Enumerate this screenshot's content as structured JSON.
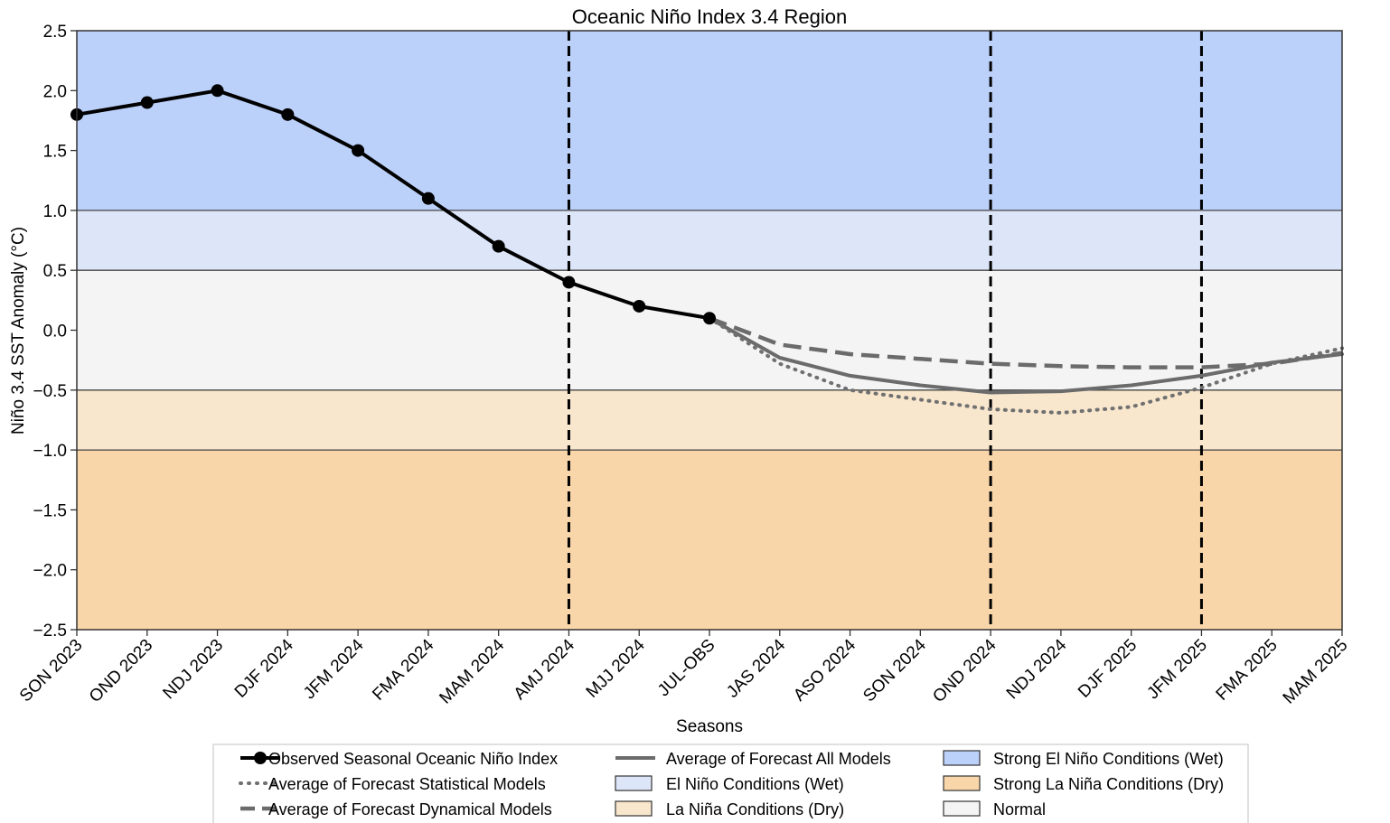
{
  "chart_data": {
    "type": "line",
    "title": "Oceanic Niño Index 3.4 Region",
    "xlabel": "Seasons",
    "ylabel": "Niño 3.4 SST Anomaly (°C)",
    "ylim": [
      -2.5,
      2.5
    ],
    "yticks": [
      "2.5",
      "2.0",
      "1.5",
      "1.0",
      "0.5",
      "0.0",
      "−0.5",
      "−1.0",
      "−1.5",
      "−2.0",
      "−2.5"
    ],
    "ytick_values": [
      2.5,
      2.0,
      1.5,
      1.0,
      0.5,
      0.0,
      -0.5,
      -1.0,
      -1.5,
      -2.0,
      -2.5
    ],
    "categories": [
      "SON 2023",
      "OND 2023",
      "NDJ 2023",
      "DJF 2024",
      "JFM 2024",
      "FMA 2024",
      "MAM 2024",
      "AMJ 2024",
      "MJJ 2024",
      "JUL-OBS",
      "JAS 2024",
      "ASO 2024",
      "SON 2024",
      "OND 2024",
      "NDJ 2024",
      "DJF 2025",
      "JFM 2025",
      "FMA 2025",
      "MAM 2025"
    ],
    "grid": false,
    "legend_position": "bottom",
    "bands": [
      {
        "name": "Strong El Niño Conditions (Wet)",
        "from": 1.0,
        "to": 2.5,
        "color": "#bcd1fa"
      },
      {
        "name": "El Niño Conditions (Wet)",
        "from": 0.5,
        "to": 1.0,
        "color": "#dde6f9"
      },
      {
        "name": "Normal",
        "from": -0.5,
        "to": 0.5,
        "color": "#f4f4f4"
      },
      {
        "name": "La Niña Conditions (Dry)",
        "from": -1.0,
        "to": -0.5,
        "color": "#f8e6cd"
      },
      {
        "name": "Strong La Niña Conditions (Dry)",
        "from": -2.5,
        "to": -1.0,
        "color": "#f9d6aa"
      }
    ],
    "vertical_lines": [
      "AMJ 2024",
      "OND 2024",
      "JFM 2025"
    ],
    "series": [
      {
        "name": "Observed Seasonal Oceanic Niño Index",
        "style": "solid-markers",
        "color": "#000000",
        "x": [
          "SON 2023",
          "OND 2023",
          "NDJ 2023",
          "DJF 2024",
          "JFM 2024",
          "FMA 2024",
          "MAM 2024",
          "AMJ 2024",
          "MJJ 2024",
          "JUL-OBS"
        ],
        "values": [
          1.8,
          1.9,
          2.0,
          1.8,
          1.5,
          1.1,
          0.7,
          0.4,
          0.2,
          0.1
        ]
      },
      {
        "name": "Average of Forecast All Models",
        "style": "solid",
        "color": "#6b6b6b",
        "x": [
          "JUL-OBS",
          "JAS 2024",
          "ASO 2024",
          "SON 2024",
          "OND 2024",
          "NDJ 2024",
          "DJF 2025",
          "JFM 2025",
          "FMA 2025",
          "MAM 2025"
        ],
        "values": [
          0.1,
          -0.23,
          -0.38,
          -0.46,
          -0.52,
          -0.51,
          -0.46,
          -0.38,
          -0.27,
          -0.2
        ]
      },
      {
        "name": "Average of Forecast Statistical Models",
        "style": "dotted",
        "color": "#707070",
        "x": [
          "JUL-OBS",
          "JAS 2024",
          "ASO 2024",
          "SON 2024",
          "OND 2024",
          "NDJ 2024",
          "DJF 2025",
          "JFM 2025",
          "FMA 2025",
          "MAM 2025"
        ],
        "values": [
          0.1,
          -0.28,
          -0.5,
          -0.58,
          -0.66,
          -0.69,
          -0.64,
          -0.48,
          -0.28,
          -0.15
        ]
      },
      {
        "name": "Average of Forecast Dynamical Models",
        "style": "dashed",
        "color": "#6b6b6b",
        "x": [
          "JUL-OBS",
          "JAS 2024",
          "ASO 2024",
          "SON 2024",
          "OND 2024",
          "NDJ 2024",
          "DJF 2025",
          "JFM 2025",
          "FMA 2025",
          "MAM 2025"
        ],
        "values": [
          0.1,
          -0.12,
          -0.2,
          -0.24,
          -0.28,
          -0.3,
          -0.31,
          -0.31,
          -0.28,
          -0.19
        ]
      }
    ],
    "legend": [
      {
        "label": "Observed Seasonal Oceanic Niño Index",
        "kind": "line-marker",
        "color": "#000000"
      },
      {
        "label": "Average of Forecast Statistical Models",
        "kind": "dotted",
        "color": "#707070"
      },
      {
        "label": "Average of Forecast Dynamical Models",
        "kind": "dashed",
        "color": "#6b6b6b"
      },
      {
        "label": "Average of Forecast All Models",
        "kind": "solid",
        "color": "#6b6b6b"
      },
      {
        "label": "El Niño Conditions (Wet)",
        "kind": "patch",
        "color": "#dde6f9"
      },
      {
        "label": "La Niña Conditions (Dry)",
        "kind": "patch",
        "color": "#f8e6cd"
      },
      {
        "label": "Strong El Niño Conditions (Wet)",
        "kind": "patch",
        "color": "#bcd1fa"
      },
      {
        "label": "Strong La Niña Conditions (Dry)",
        "kind": "patch",
        "color": "#f9d6aa"
      },
      {
        "label": "Normal",
        "kind": "patch",
        "color": "#f4f4f4"
      }
    ]
  }
}
